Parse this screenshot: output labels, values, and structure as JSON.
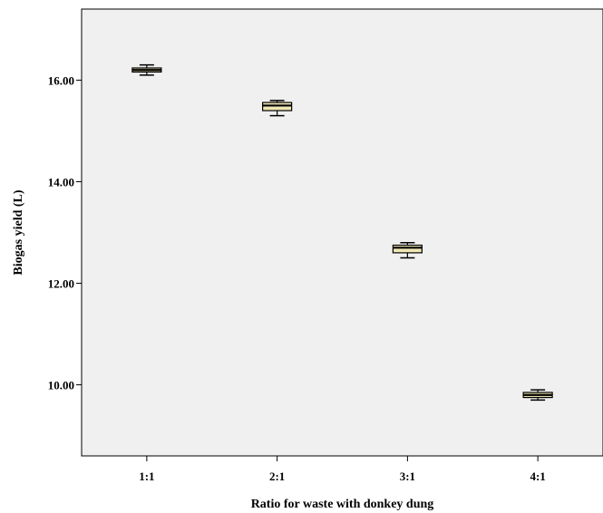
{
  "chart_data": {
    "type": "box",
    "title": "",
    "xlabel": "Ratio for waste with donkey dung",
    "ylabel": "Biogas yield (L)",
    "categories": [
      "1:1",
      "2:1",
      "3:1",
      "4:1"
    ],
    "boxes": [
      {
        "category": "1:1",
        "min": 16.1,
        "q1": 16.16,
        "median": 16.2,
        "q3": 16.24,
        "max": 16.3
      },
      {
        "category": "2:1",
        "min": 15.3,
        "q1": 15.4,
        "median": 15.5,
        "q3": 15.56,
        "max": 15.6
      },
      {
        "category": "3:1",
        "min": 12.5,
        "q1": 12.6,
        "median": 12.7,
        "q3": 12.75,
        "max": 12.8
      },
      {
        "category": "4:1",
        "min": 9.7,
        "q1": 9.75,
        "median": 9.8,
        "q3": 9.85,
        "max": 9.9
      }
    ],
    "yticks": [
      "10.00",
      "12.00",
      "14.00",
      "16.00"
    ],
    "ylim": [
      8.6,
      17.4
    ],
    "grid": false,
    "colors": {
      "plot_background": "#f0f0f0",
      "box_fill": "#efe7b4",
      "line": "#000000"
    }
  }
}
